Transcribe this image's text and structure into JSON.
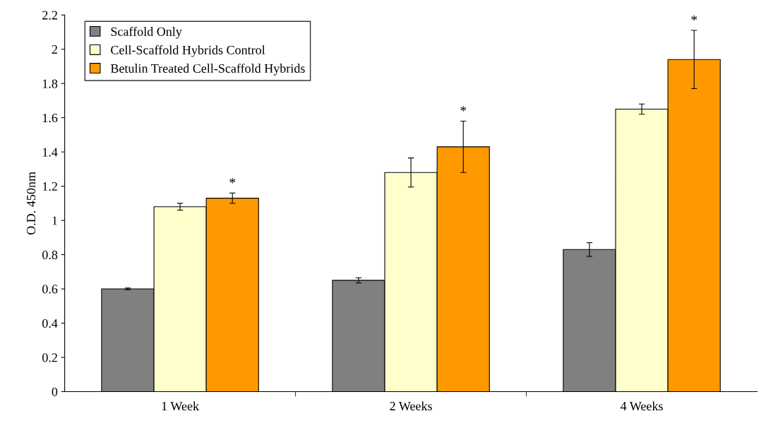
{
  "chart_data": {
    "type": "bar",
    "ylabel": "O.D. 450nm",
    "categories": [
      "1 Week",
      "2 Weeks",
      "4 Weeks"
    ],
    "series": [
      {
        "name": "Scaffold Only",
        "color": "#808080",
        "values": [
          0.6,
          0.65,
          0.83
        ],
        "errors": [
          0.005,
          0.015,
          0.04
        ]
      },
      {
        "name": "Cell-Scaffold Hybrids Control",
        "color": "#ffffcc",
        "values": [
          1.08,
          1.28,
          1.65
        ],
        "errors": [
          0.02,
          0.085,
          0.03
        ]
      },
      {
        "name": "Betulin Treated Cell-Scaffold Hybrids",
        "color": "#ff9900",
        "values": [
          1.13,
          1.43,
          1.94
        ],
        "errors": [
          0.03,
          0.15,
          0.17
        ]
      }
    ],
    "ylim": [
      0,
      2.2
    ],
    "yticks": [
      0,
      0.2,
      0.4,
      0.6,
      0.8,
      1,
      1.2,
      1.4,
      1.6,
      1.8,
      2,
      2.2
    ],
    "grid": false,
    "legend": "top left",
    "annotations": [
      "*",
      "*",
      "*"
    ]
  }
}
